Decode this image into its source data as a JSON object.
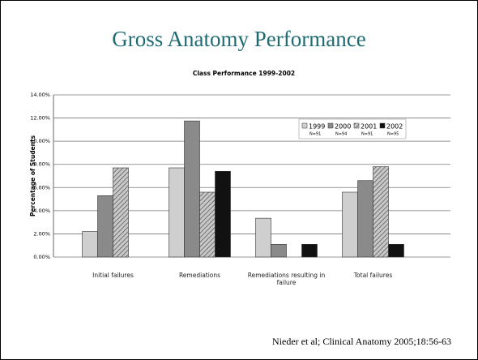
{
  "slide_title": "Gross Anatomy Performance",
  "citation": "Nieder et al; Clinical Anatomy 2005;18:56-63",
  "chart_data": {
    "type": "bar",
    "title": "Class Performance 1999-2002",
    "y_label": "Percentage of Students",
    "categories": [
      "Initial failures",
      "Remediations",
      "Remediations resulting in failure",
      "Total failures"
    ],
    "series": [
      {
        "name": "1999",
        "sample": "N=91",
        "color": "#cfcfcf",
        "values": [
          2.2,
          7.7,
          3.35,
          5.6
        ]
      },
      {
        "name": "2000",
        "sample": "N=94",
        "color": "#8a8a8a",
        "values": [
          5.3,
          11.75,
          1.1,
          6.6
        ]
      },
      {
        "name": "2001",
        "sample": "N=91",
        "color": "#a8a8a8",
        "hatch": true,
        "values": [
          7.7,
          5.6,
          0,
          7.8
        ]
      },
      {
        "name": "2002",
        "sample": "N=95",
        "color": "#111111",
        "values": [
          0,
          7.4,
          1.1,
          1.1
        ]
      }
    ],
    "ylim": [
      0,
      14
    ],
    "yticks": [
      {
        "value": 0,
        "label": "0.00%"
      },
      {
        "value": 2,
        "label": "2.00%"
      },
      {
        "value": 4,
        "label": "4.00%"
      },
      {
        "value": 6,
        "label": "6.00%"
      },
      {
        "value": 8,
        "label": "8.00%"
      },
      {
        "value": 10,
        "label": "10.00%"
      },
      {
        "value": 12,
        "label": "12.00%"
      },
      {
        "value": 14,
        "label": "14.00%"
      }
    ],
    "grid": true
  }
}
